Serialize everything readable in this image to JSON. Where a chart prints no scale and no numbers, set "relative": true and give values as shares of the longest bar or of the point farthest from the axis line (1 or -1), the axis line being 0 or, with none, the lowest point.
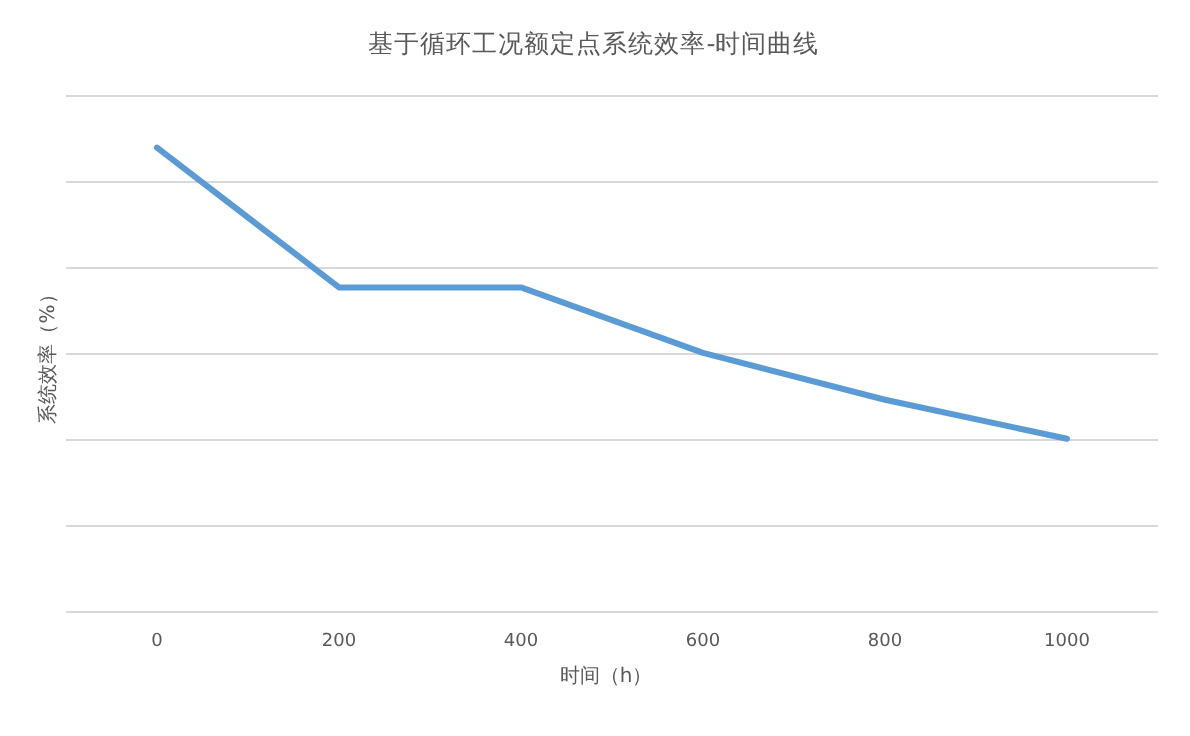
{
  "chart_data": {
    "type": "line",
    "title": "基于循环工况额定点系统效率-时间曲线",
    "xlabel": "时间（h）",
    "ylabel": "系统效率（%）",
    "relative": true,
    "grid": "y",
    "categories": [
      "0",
      "200",
      "400",
      "600",
      "800",
      "1000"
    ],
    "series": [
      {
        "color": "#5b9bd5",
        "values": [
          1,
          0.699,
          0.699,
          0.558,
          0.457,
          0.373
        ]
      }
    ]
  }
}
